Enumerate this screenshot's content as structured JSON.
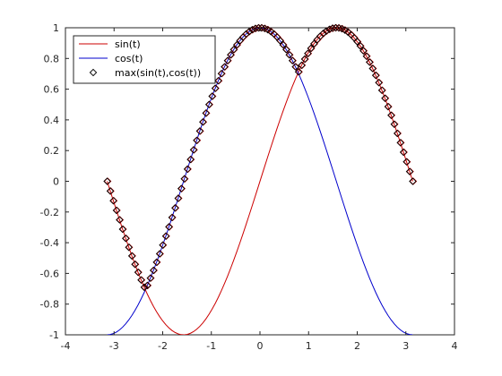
{
  "chart_data": {
    "type": "line",
    "xlim": [
      -4,
      4
    ],
    "ylim": [
      -1,
      1
    ],
    "x_ticks": [
      -4,
      -3,
      -2,
      -1,
      0,
      1,
      2,
      3,
      4
    ],
    "y_ticks": [
      -1,
      -0.8,
      -0.6,
      -0.4,
      -0.2,
      0,
      0.2,
      0.4,
      0.6,
      0.8,
      1
    ],
    "x_tick_labels": [
      "-4",
      "-3",
      "-2",
      "-1",
      "0",
      "1",
      "2",
      "3",
      "4"
    ],
    "y_tick_labels": [
      "-1",
      "-0.8",
      "-0.6",
      "-0.4",
      "-0.2",
      "0",
      "0.2",
      "0.4",
      "0.6",
      "0.8",
      "1"
    ],
    "grid": false,
    "legend_position": "top-left",
    "t_range": [
      -3.14159,
      3.14159
    ],
    "sample_count": 100,
    "series": [
      {
        "name": "sin(t)",
        "function": "sin",
        "color": "#cc0000",
        "style": "line"
      },
      {
        "name": "cos(t)",
        "function": "cos",
        "color": "#0000cc",
        "style": "line"
      },
      {
        "name": "max(sin(t),cos(t))",
        "function": "max_sin_cos",
        "color": "#000000",
        "marker_edge_second_color": "#cc0000",
        "style": "marker-diamond"
      }
    ]
  }
}
